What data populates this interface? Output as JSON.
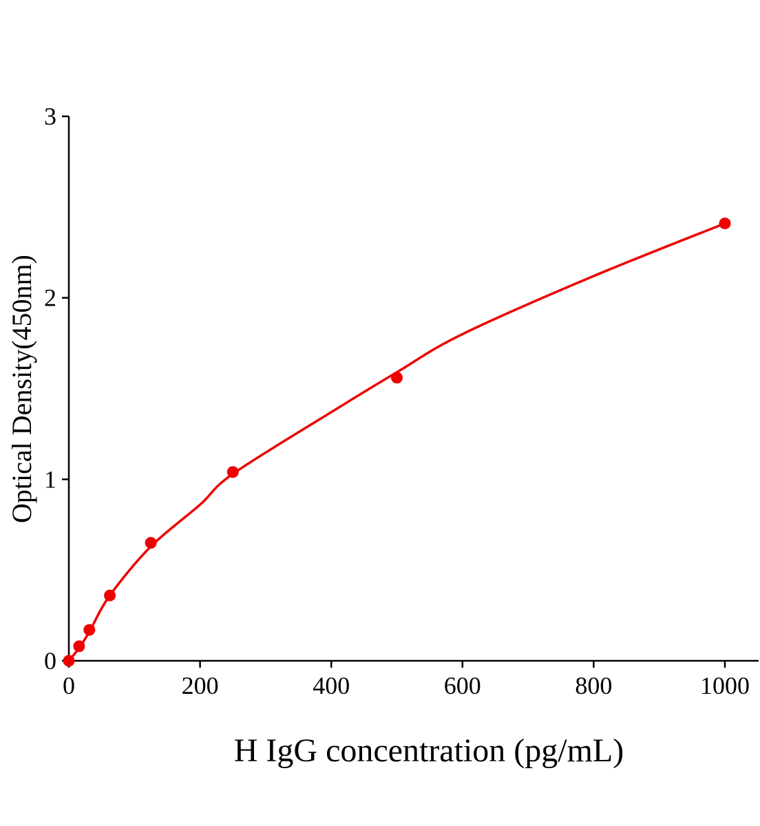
{
  "chart_data": {
    "type": "scatter",
    "title": "",
    "xlabel": "H IgG concentration (pg/mL)",
    "ylabel": "Optical Density(450nm)",
    "xlim": [
      0,
      1050
    ],
    "ylim": [
      0,
      3
    ],
    "xticks": [
      0,
      200,
      400,
      600,
      800,
      1000
    ],
    "yticks": [
      0,
      1,
      2,
      3
    ],
    "grid": false,
    "legend": "none",
    "color": "#ee0000",
    "points": [
      {
        "x": 0,
        "y": 0.0
      },
      {
        "x": 15.6,
        "y": 0.08
      },
      {
        "x": 31.25,
        "y": 0.17
      },
      {
        "x": 62.5,
        "y": 0.36
      },
      {
        "x": 125,
        "y": 0.65
      },
      {
        "x": 250,
        "y": 1.04
      },
      {
        "x": 500,
        "y": 1.56
      },
      {
        "x": 1000,
        "y": 2.41
      }
    ],
    "fit_curve": [
      {
        "x": 0,
        "y": 0.0
      },
      {
        "x": 15.6,
        "y": 0.07
      },
      {
        "x": 31.25,
        "y": 0.16
      },
      {
        "x": 62.5,
        "y": 0.36
      },
      {
        "x": 125,
        "y": 0.63
      },
      {
        "x": 200,
        "y": 0.86
      },
      {
        "x": 250,
        "y": 1.03
      },
      {
        "x": 400,
        "y": 1.37
      },
      {
        "x": 500,
        "y": 1.59
      },
      {
        "x": 600,
        "y": 1.8
      },
      {
        "x": 800,
        "y": 2.12
      },
      {
        "x": 1000,
        "y": 2.41
      }
    ]
  }
}
